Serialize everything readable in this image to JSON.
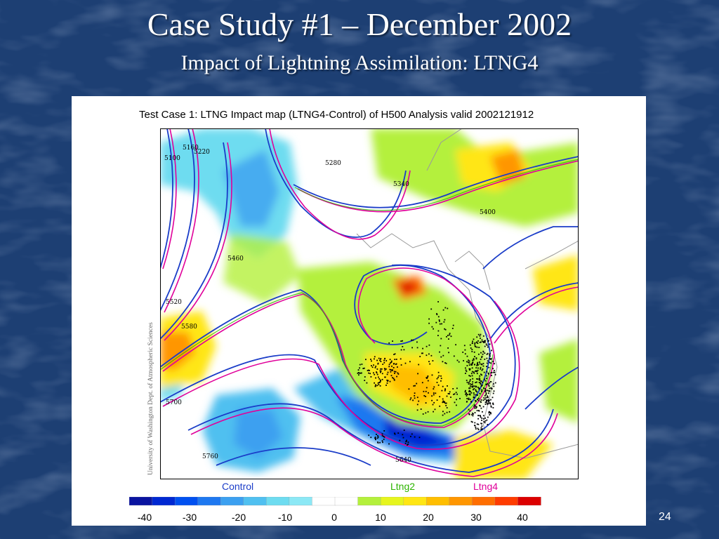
{
  "slide": {
    "title": "Case Study #1 – December 2002",
    "subtitle": "Impact of Lightning Assimilation: LTNG4",
    "page_number": "24"
  },
  "map": {
    "title": "Test Case 1: LTNG Impact map (LTNG4-Control) of H500 Analysis valid 2002121912",
    "credit": "University of Washington Dept. of Atmospheric Sciences",
    "legend": [
      {
        "label": "Control",
        "color": "#1a3cc8"
      },
      {
        "label": "Ltng2",
        "color": "#2db400"
      },
      {
        "label": "Ltng4",
        "color": "#e0009a"
      }
    ],
    "contour_labels": [
      "5100",
      "5160",
      "5220",
      "5280",
      "5340",
      "5400",
      "5460",
      "5520",
      "5580",
      "5640",
      "5700",
      "5760"
    ],
    "colorbar": {
      "ticks": [
        "-40",
        "-30",
        "-20",
        "-10",
        "0",
        "10",
        "20",
        "30",
        "40"
      ],
      "colors": [
        "#0a14a0",
        "#0028d2",
        "#0050f0",
        "#1e78f0",
        "#3ca0f0",
        "#50c0f0",
        "#6edcf0",
        "#8ce8f5",
        "#ffffff",
        "#ffffff",
        "#b4f03c",
        "#e6f51e",
        "#ffe614",
        "#ffbe00",
        "#ff9600",
        "#ff6e00",
        "#ff3c00",
        "#dc0000"
      ]
    }
  }
}
